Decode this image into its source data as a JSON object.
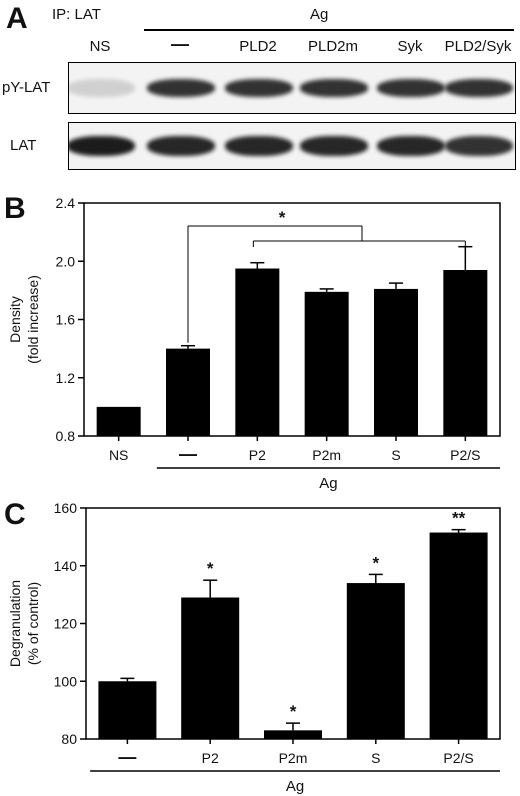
{
  "panel_a": {
    "letter": "A",
    "ip_label": "IP: LAT",
    "ag_label": "Ag",
    "lanes": [
      "NS",
      "—",
      "PLD2",
      "PLD2m",
      "Syk",
      "PLD2/Syk"
    ],
    "blot1_label": "pY-LAT",
    "blot2_label": "LAT",
    "band_intensity_py_lat": [
      0.15,
      0.85,
      0.85,
      0.85,
      0.85,
      0.85
    ],
    "band_intensity_lat": [
      0.95,
      0.9,
      0.9,
      0.9,
      0.9,
      0.85
    ]
  },
  "panel_b": {
    "letter": "B",
    "ag_label": "Ag",
    "significance": "*"
  },
  "panel_c": {
    "letter": "C",
    "ag_label": "Ag"
  },
  "chart_data": [
    {
      "type": "bar",
      "panel": "B",
      "categories": [
        "NS",
        "—",
        "P2",
        "P2m",
        "S",
        "P2/S"
      ],
      "values": [
        1.0,
        1.4,
        1.95,
        1.79,
        1.81,
        1.94
      ],
      "errors": [
        0.0,
        0.02,
        0.04,
        0.02,
        0.04,
        0.16
      ],
      "ylabel_line1": "Density",
      "ylabel_line2": "(fold increase)",
      "ylim": [
        0.8,
        2.4
      ],
      "yticks": [
        "0.8",
        "1.2",
        "1.6",
        "2.0",
        "2.4"
      ],
      "xlabel": "Ag",
      "bar_color": "#000000"
    },
    {
      "type": "bar",
      "panel": "C",
      "categories": [
        "—",
        "P2",
        "P2m",
        "S",
        "P2/S"
      ],
      "values": [
        100,
        129,
        83,
        134,
        151.5
      ],
      "errors": [
        1,
        6,
        2.5,
        3,
        1
      ],
      "annotations": [
        "",
        "*",
        "*",
        "*",
        "**"
      ],
      "ylabel_line1": "Degranulation",
      "ylabel_line2": "(% of control)",
      "ylim": [
        80,
        160
      ],
      "yticks": [
        "80",
        "100",
        "120",
        "140",
        "160"
      ],
      "xlabel": "Ag",
      "bar_color": "#000000"
    }
  ]
}
